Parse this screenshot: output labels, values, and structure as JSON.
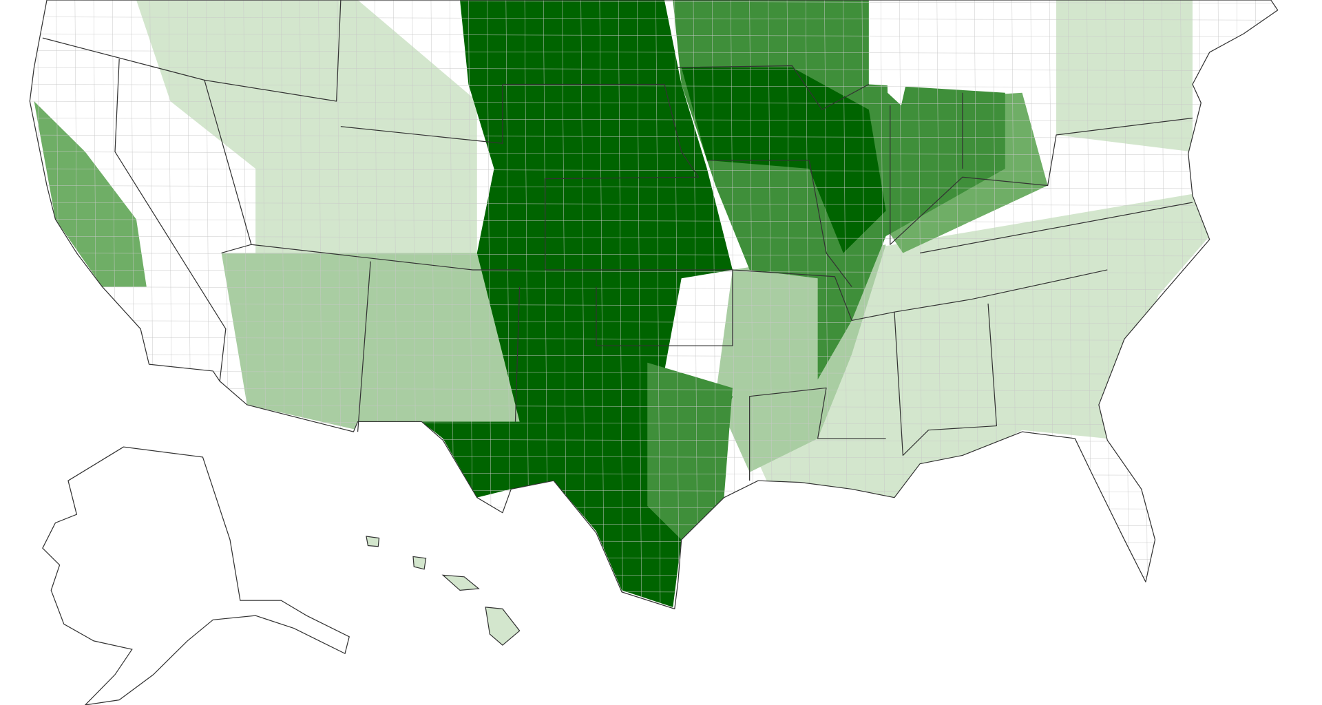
{
  "map": {
    "palette": [
      "#ffffff",
      "#d3e6cd",
      "#a9cda2",
      "#6fae66",
      "#3f8f3a",
      "#006400"
    ],
    "border_color": "#333333",
    "county_line_color": "#c8c8c8"
  }
}
